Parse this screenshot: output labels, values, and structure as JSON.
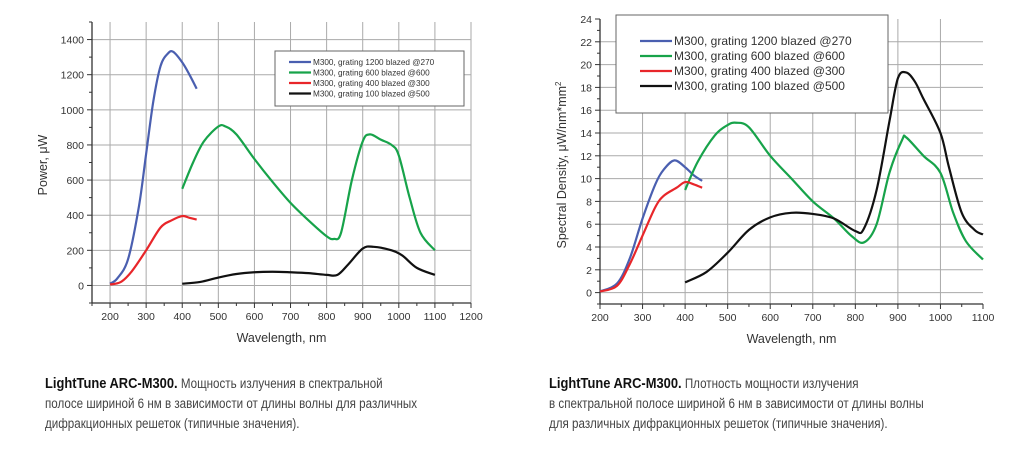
{
  "chart_data": [
    {
      "type": "line",
      "xlabel": "Wavelength, nm",
      "ylabel": "Power, μW",
      "xlim": [
        150,
        1200
      ],
      "ylim": [
        -100,
        1500
      ],
      "xticks": [
        200,
        300,
        400,
        500,
        600,
        700,
        800,
        900,
        1000,
        1100,
        1200
      ],
      "yticks": [
        0,
        200,
        400,
        600,
        800,
        1000,
        1200,
        1400
      ],
      "grid": true,
      "legend_position": "top-right",
      "series": [
        {
          "name": "M300, grating 1200 blazed @270",
          "color": "#4a5fb0",
          "x": [
            200,
            220,
            250,
            280,
            300,
            320,
            340,
            360,
            375,
            400,
            420,
            440
          ],
          "y": [
            10,
            40,
            150,
            450,
            750,
            1050,
            1250,
            1320,
            1330,
            1270,
            1200,
            1120
          ]
        },
        {
          "name": "M300, grating 600 blazed @600",
          "color": "#17a34a",
          "x": [
            400,
            430,
            460,
            500,
            520,
            550,
            600,
            650,
            700,
            750,
            800,
            820,
            840,
            870,
            900,
            920,
            950,
            980,
            1000,
            1030,
            1060,
            1100
          ],
          "y": [
            550,
            700,
            820,
            905,
            905,
            860,
            720,
            590,
            470,
            370,
            280,
            265,
            300,
            600,
            820,
            860,
            830,
            800,
            740,
            500,
            300,
            200
          ]
        },
        {
          "name": "M300, grating 400 blazed @300",
          "color": "#e8262a",
          "x": [
            200,
            230,
            260,
            300,
            340,
            370,
            400,
            420,
            440
          ],
          "y": [
            5,
            20,
            80,
            200,
            330,
            370,
            395,
            385,
            375
          ]
        },
        {
          "name": "M300, grating 100 blazed @500",
          "color": "#111111",
          "x": [
            400,
            450,
            500,
            550,
            600,
            650,
            700,
            750,
            800,
            830,
            860,
            900,
            930,
            980,
            1010,
            1050,
            1100
          ],
          "y": [
            10,
            20,
            45,
            65,
            75,
            78,
            75,
            70,
            60,
            60,
            120,
            210,
            220,
            200,
            170,
            100,
            60
          ]
        }
      ]
    },
    {
      "type": "line",
      "xlabel": "Wavelength, nm",
      "ylabel": "Spectral Density, μW/nm*mm",
      "ylabel_superscript": "2",
      "xlim": [
        200,
        1100
      ],
      "ylim": [
        -1,
        24
      ],
      "xticks": [
        200,
        300,
        400,
        500,
        600,
        700,
        800,
        900,
        1000,
        1100
      ],
      "yticks": [
        0,
        2,
        4,
        6,
        8,
        10,
        12,
        14,
        16,
        18,
        20,
        22,
        24
      ],
      "grid": true,
      "legend_position": "top-left",
      "series": [
        {
          "name": "M300, grating 1200 blazed @270",
          "color": "#4a5fb0",
          "x": [
            200,
            240,
            270,
            300,
            330,
            350,
            375,
            400,
            420,
            440
          ],
          "y": [
            0.1,
            0.8,
            3,
            6.5,
            9.5,
            10.8,
            11.6,
            11,
            10.3,
            9.8
          ]
        },
        {
          "name": "M300, grating 600 blazed @600",
          "color": "#17a34a",
          "x": [
            400,
            430,
            470,
            500,
            520,
            550,
            600,
            650,
            700,
            750,
            790,
            820,
            850,
            880,
            910,
            920,
            960,
            1000,
            1030,
            1060,
            1100
          ],
          "y": [
            9,
            11.5,
            13.8,
            14.7,
            14.9,
            14.5,
            12,
            10,
            8,
            6.5,
            5,
            4.4,
            6,
            10.5,
            13.4,
            13.6,
            12,
            10.5,
            7,
            4.5,
            2.9
          ]
        },
        {
          "name": "M300, grating 400 blazed @300",
          "color": "#e8262a",
          "x": [
            200,
            240,
            270,
            300,
            330,
            350,
            380,
            400,
            420,
            440
          ],
          "y": [
            0.1,
            0.6,
            2.5,
            5,
            7.5,
            8.5,
            9.2,
            9.7,
            9.5,
            9.2
          ]
        },
        {
          "name": "M300, grating 100 blazed @500",
          "color": "#111111",
          "x": [
            400,
            450,
            500,
            550,
            600,
            650,
            700,
            750,
            800,
            820,
            850,
            880,
            900,
            920,
            940,
            960,
            1000,
            1020,
            1050,
            1080,
            1100
          ],
          "y": [
            0.9,
            1.8,
            3.5,
            5.5,
            6.6,
            7.0,
            6.9,
            6.5,
            5.4,
            5.6,
            9,
            15,
            18.8,
            19.3,
            18.5,
            17,
            14,
            11,
            7,
            5.5,
            5.1
          ]
        }
      ]
    }
  ],
  "captions": [
    {
      "title": "LightTune ARC-M300.",
      "lines": [
        "Мощность излучения в спектральной",
        "полосе шириной 6 нм в зависимости от длины волны для различных",
        "дифракционных решеток (типичные значения)."
      ]
    },
    {
      "title": "LightTune ARC-M300.",
      "lines": [
        "Плотность мощности излучения",
        "в спектральной полосе шириной 6 нм в зависимости от длины волны",
        "для различных дифракционных решеток (типичные значения)."
      ]
    }
  ]
}
